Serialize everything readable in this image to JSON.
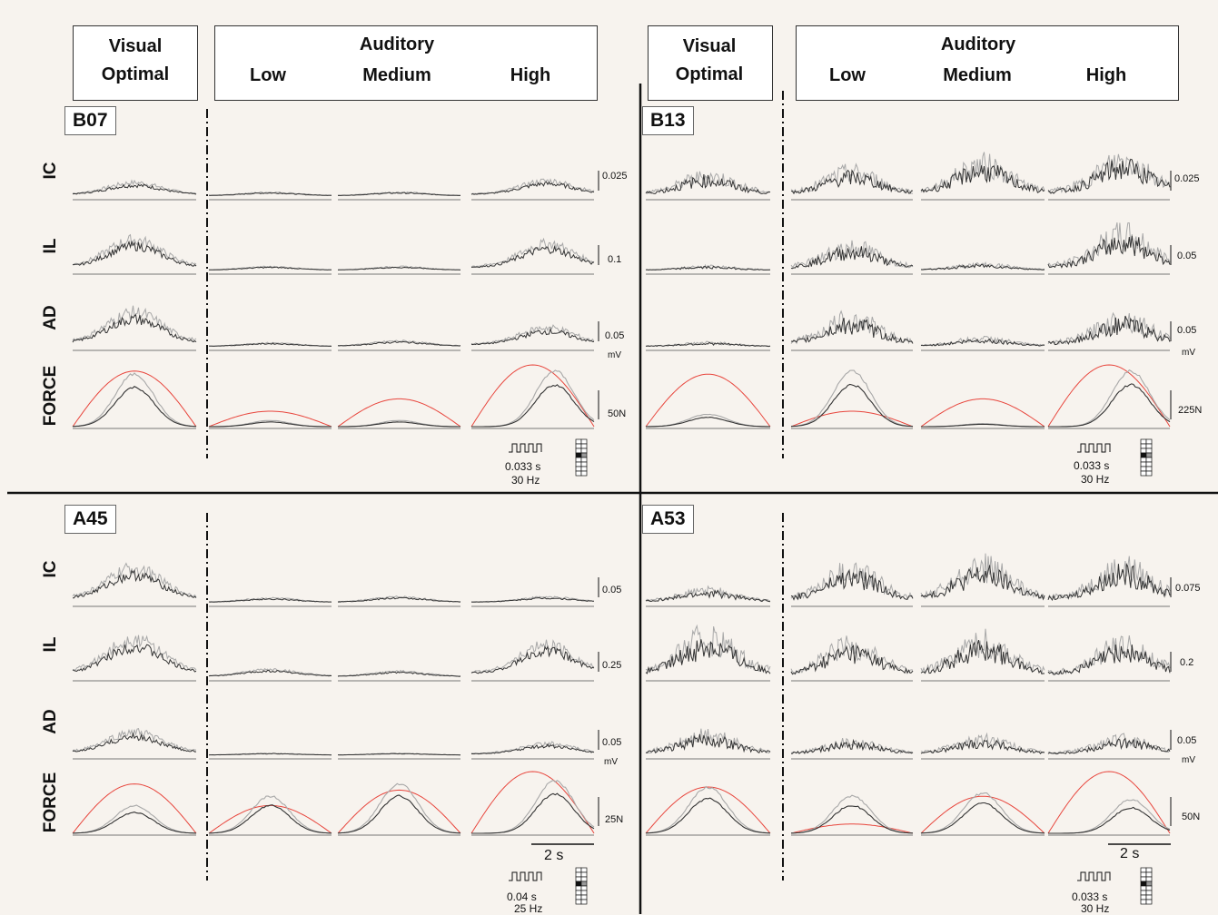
{
  "column_headers": {
    "visual": "Visual",
    "visual_sub": "Optimal",
    "auditory": "Auditory",
    "low": "Low",
    "medium": "Medium",
    "high": "High"
  },
  "row_labels": [
    "IC",
    "IL",
    "AD",
    "FORCE"
  ],
  "colors": {
    "force_target": "#e8453c",
    "trace_dark": "#333333",
    "trace_light": "#a8a8a8",
    "background": "#f7f3ee"
  },
  "time_bar_label": "2 s",
  "chart_data": [
    {
      "type": "line",
      "panel": "B07",
      "conditions": [
        "Visual Optimal",
        "Auditory Low",
        "Auditory Medium",
        "Auditory High"
      ],
      "rows": {
        "IC": {
          "scale": "0.025",
          "amplitude": [
            0.35,
            0.1,
            0.1,
            0.4
          ]
        },
        "IL": {
          "scale": "0.1",
          "amplitude": [
            0.8,
            0.1,
            0.1,
            0.7
          ]
        },
        "AD": {
          "scale": "0.05",
          "unit": "mV",
          "amplitude": [
            0.9,
            0.1,
            0.15,
            0.5
          ]
        },
        "FORCE": {
          "scale": "50N",
          "target_peak": [
            0.9,
            0.25,
            0.45,
            1.0
          ],
          "response_peak": [
            0.85,
            0.1,
            0.1,
            0.9
          ]
        }
      },
      "stimulus": {
        "period": "0.033 s",
        "rate": "30 Hz"
      }
    },
    {
      "type": "line",
      "panel": "B13",
      "conditions": [
        "Visual Optimal",
        "Auditory Low",
        "Auditory Medium",
        "Auditory High"
      ],
      "rows": {
        "IC": {
          "scale": "0.025",
          "amplitude": [
            0.5,
            0.6,
            0.8,
            0.9
          ]
        },
        "IL": {
          "scale": "0.05",
          "amplitude": [
            0.1,
            0.6,
            0.15,
            0.9
          ]
        },
        "AD": {
          "scale": "0.05",
          "unit": "mV",
          "amplitude": [
            0.1,
            0.7,
            0.2,
            0.7
          ]
        },
        "FORCE": {
          "scale": "225N",
          "target_peak": [
            0.85,
            0.25,
            0.45,
            1.0
          ],
          "response_peak": [
            0.2,
            0.9,
            0.05,
            0.9
          ]
        }
      },
      "stimulus": {
        "period": "0.033 s",
        "rate": "30 Hz"
      }
    },
    {
      "type": "line",
      "panel": "A45",
      "conditions": [
        "Visual Optimal",
        "Auditory Low",
        "Auditory Medium",
        "Auditory High"
      ],
      "rows": {
        "IC": {
          "scale": "0.05",
          "amplitude": [
            0.9,
            0.12,
            0.15,
            0.15
          ]
        },
        "IL": {
          "scale": "0.25",
          "amplitude": [
            1.0,
            0.2,
            0.15,
            0.85
          ]
        },
        "AD": {
          "scale": "0.05",
          "unit": "mV",
          "amplitude": [
            0.6,
            0.05,
            0.05,
            0.3
          ]
        },
        "FORCE": {
          "scale": "25N",
          "target_peak": [
            0.8,
            0.45,
            0.7,
            1.0
          ],
          "response_peak": [
            0.45,
            0.6,
            0.8,
            0.85
          ]
        }
      },
      "stimulus": {
        "period": "0.04 s",
        "rate": "25 Hz"
      }
    },
    {
      "type": "line",
      "panel": "A53",
      "conditions": [
        "Visual Optimal",
        "Auditory Low",
        "Auditory Medium",
        "Auditory High"
      ],
      "rows": {
        "IC": {
          "scale": "0.075",
          "amplitude": [
            0.3,
            0.8,
            0.9,
            0.9
          ]
        },
        "IL": {
          "scale": "0.2",
          "amplitude": [
            1.0,
            0.8,
            0.9,
            0.8
          ]
        },
        "AD": {
          "scale": "0.05",
          "unit": "mV",
          "amplitude": [
            0.5,
            0.35,
            0.4,
            0.4
          ]
        },
        "FORCE": {
          "scale": "50N",
          "target_peak": [
            0.75,
            0.15,
            0.6,
            1.0
          ],
          "response_peak": [
            0.75,
            0.6,
            0.65,
            0.55
          ]
        }
      },
      "stimulus": {
        "period": "0.033 s",
        "rate": "30 Hz"
      }
    }
  ]
}
